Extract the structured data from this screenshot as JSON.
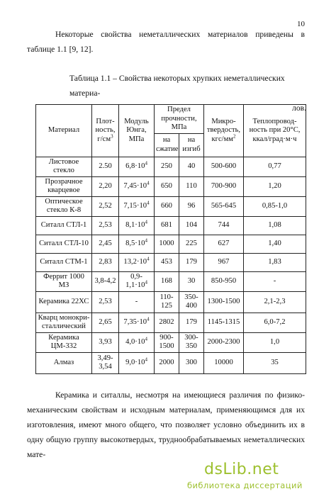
{
  "page_number": "10",
  "intro": {
    "text": "Некоторые свойства неметаллических материалов приведены в таблице 1.1 [9, 12]."
  },
  "caption": {
    "line1": "Таблица 1.1 – Свойства некоторых хрупких неметаллических материа-",
    "line2": "лов."
  },
  "table": {
    "headers": {
      "material": "Материал",
      "density": "Плот-ность, г/см",
      "density_sup": "3",
      "modulus": "Модуль Юнга, МПа",
      "strength": "Предел прочности, МПа",
      "strength_compression": "на сжатие",
      "strength_bending": "на изгиб",
      "microhardness": "Микро-твердость, кгс/мм",
      "microhardness_sup": "2",
      "conductivity": "Теплопровод-ность при 20°С, ккал/град·м·ч"
    },
    "rows": [
      {
        "material": "Листовое стекло",
        "density": "2.50",
        "modulus": "6,8·10",
        "modulus_exp": "4",
        "compression": "250",
        "bending": "40",
        "microhardness": "500-600",
        "conductivity": "0,77"
      },
      {
        "material": "Прозрачное кварцевое",
        "density": "2,20",
        "modulus": "7,45·10",
        "modulus_exp": "4",
        "compression": "650",
        "bending": "110",
        "microhardness": "700-900",
        "conductivity": "1,20"
      },
      {
        "material": "Оптическое стекло К-8",
        "density": "2,52",
        "modulus": "7,15·10",
        "modulus_exp": "4",
        "compression": "660",
        "bending": "96",
        "microhardness": "565-645",
        "conductivity": "0,85-1,0"
      },
      {
        "material": "Ситалл СТЛ-1",
        "density": "2,53",
        "modulus": "8,1·10",
        "modulus_exp": "4",
        "compression": "681",
        "bending": "104",
        "microhardness": "744",
        "conductivity": "1,08"
      },
      {
        "material": "Ситалл СТЛ-10",
        "density": "2,45",
        "modulus": "8,5·10",
        "modulus_exp": "4",
        "compression": "1000",
        "bending": "225",
        "microhardness": "627",
        "conductivity": "1,40"
      },
      {
        "material": "Ситалл СТМ-1",
        "density": "2,83",
        "modulus": "13,2·10",
        "modulus_exp": "4",
        "compression": "453",
        "bending": "179",
        "microhardness": "967",
        "conductivity": "1,83"
      },
      {
        "material": "Феррит 1000 МЗ",
        "density": "3,8-4,2",
        "modulus": "0,9-1,1·10",
        "modulus_exp": "4",
        "compression": "168",
        "bending": "30",
        "microhardness": "850-950",
        "conductivity": "-"
      },
      {
        "material": "Керамика 22ХС",
        "density": "2,53",
        "modulus": "-",
        "modulus_exp": "",
        "compression": "110-125",
        "bending": "350-400",
        "microhardness": "1300-1500",
        "conductivity": "2,1-2,3"
      },
      {
        "material": "Кварц монокри-сталлический",
        "density": "2,65",
        "modulus": "7,35·10",
        "modulus_exp": "4",
        "compression": "2802",
        "bending": "179",
        "microhardness": "1145-1315",
        "conductivity": "6,0-7,2"
      },
      {
        "material": "Керамика ЦМ-332",
        "density": "3,93",
        "modulus": "4,0·10",
        "modulus_exp": "4",
        "compression": "900-1500",
        "bending": "300-350",
        "microhardness": "2000-2300",
        "conductivity": "1,0"
      },
      {
        "material": "Алмаз",
        "density": "3,49-3,54",
        "modulus": "9,0·10",
        "modulus_exp": "4",
        "compression": "2000",
        "bending": "300",
        "microhardness": "10000",
        "conductivity": "35"
      }
    ]
  },
  "conclusion": {
    "text": "Керамика и ситаллы, несмотря на имеющиеся различия по физико-механическим свойствам и исходным материалам, применяющимся для их изготовления, имеют много общего, что позволяет условно объединить их в одну общую группу высокотвердых, труднообрабатываемых неметаллических мате-"
  },
  "watermark": {
    "logo": "dsLib.net",
    "subtitle": "библиотека диссертаций"
  }
}
